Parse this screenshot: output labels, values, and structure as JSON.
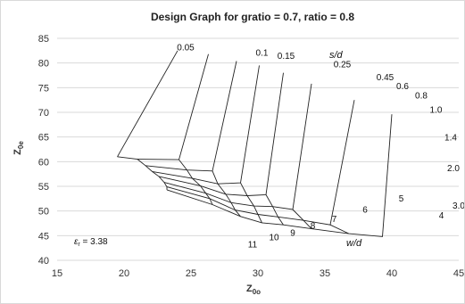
{
  "chart_data": {
    "type": "line",
    "title": "Design Graph for gratio = 0.7, ratio = 0.8",
    "xlabel": "Z",
    "xlabel_sub": "0o",
    "ylabel": "Z",
    "ylabel_sub": "0e",
    "xlim": [
      15,
      45
    ],
    "ylim": [
      40,
      85
    ],
    "xticks": [
      15,
      20,
      25,
      30,
      35,
      40,
      45
    ],
    "yticks": [
      40,
      45,
      50,
      55,
      60,
      65,
      70,
      75,
      80,
      85
    ],
    "grid": "horizontal",
    "annotation": {
      "symbol": "ε",
      "subscript": "r",
      "text": " = 3.38"
    },
    "sd_family_label": "s/d",
    "wd_family_label": "w/d",
    "sd_values": [
      "0.05",
      "0.1",
      "0.15",
      "0.25",
      "0.45",
      "0.6",
      "0.8",
      "1.0",
      "1.4",
      "2.0",
      "3.0"
    ],
    "wd_values": [
      "11",
      "10",
      "9",
      "8",
      "7",
      "6",
      "5",
      "4"
    ],
    "sd_label_points": [
      [
        24.6,
        82.6
      ],
      [
        30.3,
        81.5
      ],
      [
        32.1,
        80.8
      ],
      [
        36.3,
        79.1
      ],
      [
        39.5,
        76.5
      ],
      [
        40.8,
        74.7
      ],
      [
        42.2,
        72.8
      ],
      [
        43.3,
        69.9
      ],
      [
        44.4,
        64.3
      ],
      [
        44.6,
        58.1
      ],
      [
        45.0,
        50.5
      ]
    ],
    "wd_label_points": [
      [
        29.6,
        42.6
      ],
      [
        31.2,
        44.1
      ],
      [
        32.6,
        45.0
      ],
      [
        34.1,
        46.4
      ],
      [
        35.7,
        47.8
      ],
      [
        38.0,
        49.7
      ],
      [
        40.7,
        51.9
      ],
      [
        43.7,
        48.5
      ]
    ],
    "grid_points": [
      [
        [
          19.5,
          61.0
        ],
        [
          24.0,
          82.5
        ]
      ],
      [
        [
          21.0,
          60.5
        ],
        [
          24.1,
          60.4
        ],
        [
          26.3,
          81.8
        ]
      ],
      [
        [
          21.6,
          59.2
        ],
        [
          24.7,
          58.3
        ],
        [
          26.6,
          58.1
        ],
        [
          28.4,
          80.4
        ]
      ],
      [
        [
          22.1,
          58.0
        ],
        [
          25.1,
          56.6
        ],
        [
          27.0,
          55.5
        ],
        [
          28.7,
          55.7
        ],
        [
          30.1,
          79.5
        ]
      ],
      [
        [
          22.6,
          57.0
        ],
        [
          25.7,
          55.1
        ],
        [
          27.6,
          53.4
        ],
        [
          29.2,
          53.1
        ],
        [
          30.6,
          53.3
        ],
        [
          31.9,
          78.0
        ]
      ],
      [
        [
          23.0,
          55.8
        ],
        [
          26.1,
          53.6
        ],
        [
          28.0,
          51.7
        ],
        [
          29.7,
          51.0
        ],
        [
          31.1,
          50.9
        ],
        [
          32.6,
          50.3
        ],
        [
          34.0,
          75.8
        ]
      ],
      [
        [
          23.2,
          54.9
        ],
        [
          26.4,
          52.5
        ],
        [
          28.3,
          50.2
        ],
        [
          30.0,
          49.3
        ],
        [
          31.5,
          48.8
        ],
        [
          33.4,
          48.1
        ],
        [
          35.4,
          47.2
        ],
        [
          37.2,
          72.5
        ]
      ],
      [
        [
          23.2,
          54.3
        ],
        [
          26.6,
          51.3
        ],
        [
          28.7,
          48.9
        ],
        [
          30.3,
          47.6
        ],
        [
          31.9,
          47.2
        ],
        [
          34.0,
          46.4
        ],
        [
          36.8,
          45.4
        ],
        [
          39.3,
          44.8
        ],
        [
          40.0,
          69.6
        ]
      ]
    ]
  }
}
